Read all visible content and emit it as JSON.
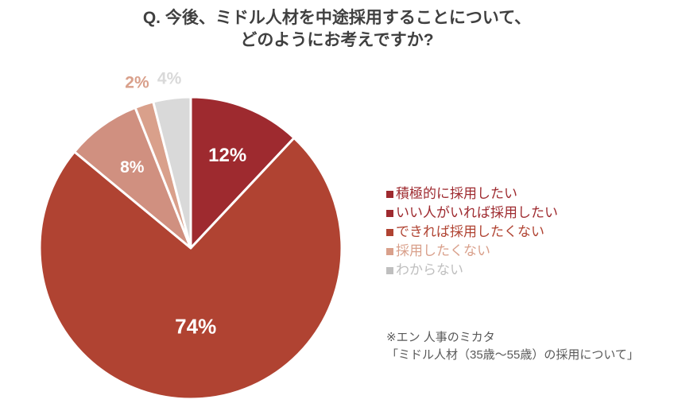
{
  "title": {
    "line1": "Q. 今後、ミドル人材を中途採用することについて、",
    "line2": "どのようにお考えですか?"
  },
  "chart_data": {
    "type": "pie",
    "categories": [
      "積極的に採用したい",
      "いい人がいれば採用したい",
      "できれば採用したくない",
      "採用したくない",
      "わからない"
    ],
    "values": [
      12,
      74,
      8,
      2,
      4
    ],
    "labels": [
      "12%",
      "74%",
      "8%",
      "2%",
      "4%"
    ],
    "colors": [
      "#9e2a2f",
      "#b04332",
      "#d09080",
      "#d9a08b",
      "#d9d9d9"
    ],
    "label_colors": [
      "#ffffff",
      "#ffffff",
      "#ffffff",
      "#d9a08b",
      "#d9d9d9"
    ],
    "legend_colors": [
      "#9e2a2f",
      "#9e2a2f",
      "#b04332",
      "#d9a08b",
      "#bfbfbf"
    ],
    "legend_position": "right"
  },
  "legend": {
    "items": [
      "積極的に採用したい",
      "いい人がいれば採用したい",
      "できれば採用したくない",
      "採用したくない",
      "わからない"
    ]
  },
  "note": {
    "line1": "※エン 人事のミカタ",
    "line2": "「ミドル人材（35歳〜55歳）の採用について」"
  }
}
